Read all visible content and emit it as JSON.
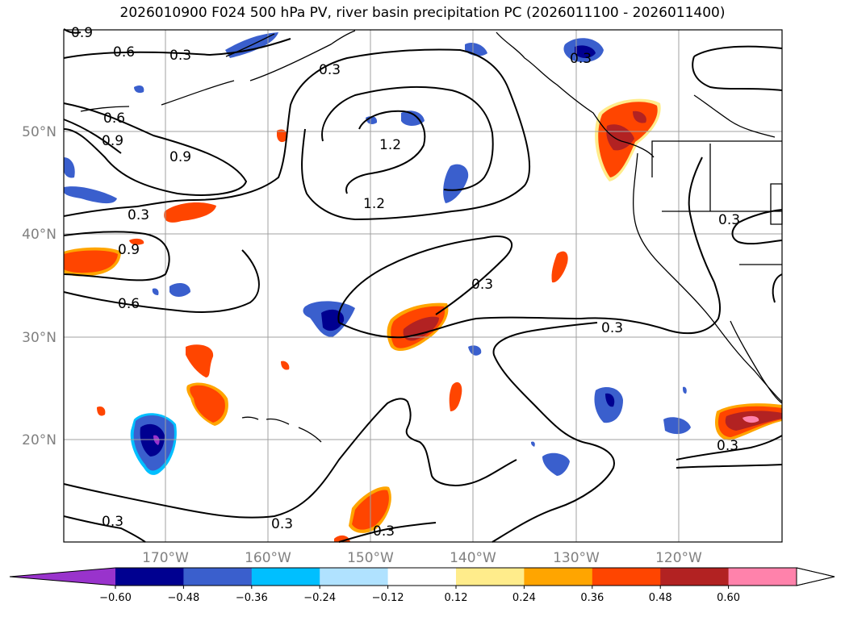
{
  "title": "2026010900 F024 500 hPa PV, river basin precipitation PC (2026011100 - 2026011400)",
  "axes": {
    "lat_ticks": [
      "50°N",
      "40°N",
      "30°N",
      "20°N"
    ],
    "lon_ticks": [
      "170°W",
      "160°W",
      "150°W",
      "140°W",
      "130°W",
      "120°W"
    ]
  },
  "contour_labels": [
    "0.9",
    "0.6",
    "0.3",
    "0.6",
    "0.9",
    "0.9",
    "0.3",
    "0.9",
    "0.6",
    "0.3",
    "1.2",
    "1.2",
    "0.3",
    "0.3",
    "0.3",
    "0.3",
    "0.3",
    "0.3",
    "0.3",
    "0.3"
  ],
  "colorbar": {
    "ticks": [
      "−0.60",
      "−0.48",
      "−0.36",
      "−0.24",
      "−0.12",
      "0.12",
      "0.24",
      "0.36",
      "0.48",
      "0.60"
    ],
    "colors": [
      "#9933cc",
      "#000090",
      "#3a5fcd",
      "#00bfff",
      "#b0e2ff",
      "#ffffff",
      "#ffec8b",
      "#ffa500",
      "#ff4500",
      "#b22222",
      "#ff82ab",
      "#ffffff"
    ]
  }
}
